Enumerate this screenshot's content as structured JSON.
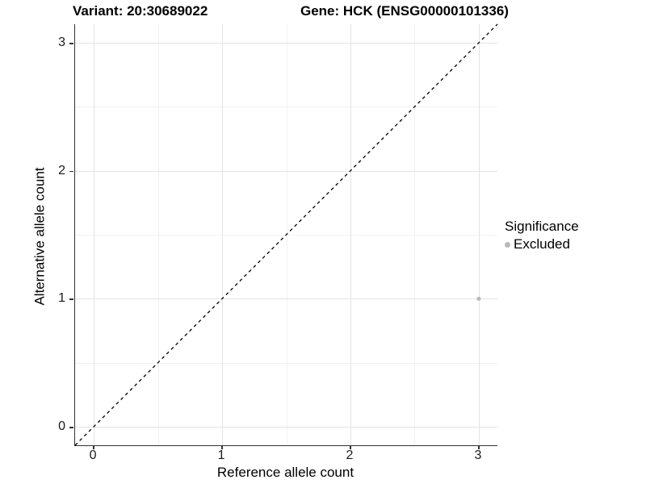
{
  "title_left": "Variant: 20:30689022",
  "title_right": "Gene: HCK (ENSG00000101336)",
  "axes": {
    "x": {
      "label": "Reference allele count",
      "ticks": [
        0,
        1,
        2,
        3
      ],
      "min": -0.145,
      "max": 3.145
    },
    "y": {
      "label": "Alternative allele count",
      "ticks": [
        0,
        1,
        2,
        3
      ],
      "min": -0.145,
      "max": 3.145
    },
    "minor_ticks": [
      0.5,
      1.5,
      2.5
    ]
  },
  "legend": {
    "title": "Significance",
    "items": [
      {
        "label": "Excluded",
        "color": "#b9b9b9"
      }
    ]
  },
  "chart_data": {
    "type": "scatter",
    "title_left": "Variant: 20:30689022",
    "title_right": "Gene: HCK (ENSG00000101336)",
    "xlabel": "Reference allele count",
    "ylabel": "Alternative allele count",
    "xlim": [
      -0.145,
      3.145
    ],
    "ylim": [
      -0.145,
      3.145
    ],
    "x_ticks": [
      0,
      1,
      2,
      3
    ],
    "y_ticks": [
      0,
      1,
      2,
      3
    ],
    "grid": "major and minor, light gray on white",
    "legend_position": "right",
    "series": [
      {
        "name": "Excluded",
        "color": "#b9b9b9",
        "points": [
          {
            "x": 3,
            "y": 1
          }
        ]
      }
    ],
    "reference_line": {
      "type": "identity y=x",
      "style": "dashed",
      "color": "#000000"
    }
  },
  "colors": {
    "grid_major": "#e4e4e4",
    "grid_minor": "#f1f1f1",
    "axis_line": "#333333",
    "point": "#b9b9b9",
    "background": "#ffffff"
  }
}
